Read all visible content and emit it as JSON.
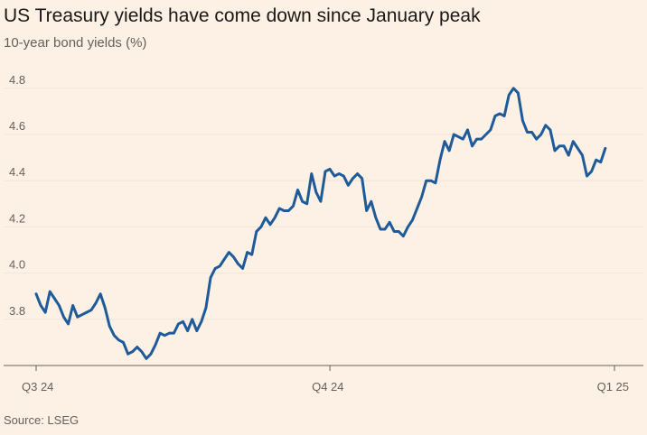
{
  "chart_data": {
    "type": "line",
    "title": "US Treasury yields have come down since January peak",
    "subtitle": "10-year bond yields (%)",
    "source": "Source: LSEG",
    "xlabel": "",
    "ylabel": "",
    "ylim": [
      3.6,
      4.85
    ],
    "yticks": [
      3.8,
      4.0,
      4.2,
      4.4,
      4.6,
      4.8
    ],
    "ytick_labels": [
      "3.8",
      "4.0",
      "4.2",
      "4.4",
      "4.6",
      "4.8"
    ],
    "x_range": [
      0,
      126
    ],
    "xticks": [
      0,
      64,
      126
    ],
    "xtick_labels": [
      "Q3 24",
      "Q4 24",
      "Q1 25"
    ],
    "grid": true,
    "legend": "none",
    "colors": {
      "line": "#1f5a99",
      "grid": "#f2e5da",
      "axis": "#66605c",
      "background": "#fdf1e6"
    },
    "series": [
      {
        "values": [
          3.91,
          3.86,
          3.83,
          3.92,
          3.89,
          3.86,
          3.81,
          3.78,
          3.86,
          3.81,
          3.82,
          3.83,
          3.84,
          3.87,
          3.91,
          3.85,
          3.77,
          3.73,
          3.71,
          3.7,
          3.65,
          3.66,
          3.68,
          3.66,
          3.63,
          3.65,
          3.69,
          3.74,
          3.73,
          3.74,
          3.74,
          3.78,
          3.79,
          3.75,
          3.8,
          3.75,
          3.79,
          3.85,
          3.98,
          4.02,
          4.03,
          4.06,
          4.09,
          4.07,
          4.04,
          4.02,
          4.09,
          4.08,
          4.18,
          4.2,
          4.24,
          4.21,
          4.24,
          4.28,
          4.27,
          4.27,
          4.29,
          4.36,
          4.31,
          4.3,
          4.43,
          4.35,
          4.31,
          4.44,
          4.45,
          4.42,
          4.43,
          4.42,
          4.38,
          4.41,
          4.43,
          4.41,
          4.27,
          4.31,
          4.24,
          4.19,
          4.19,
          4.22,
          4.18,
          4.18,
          4.16,
          4.2,
          4.23,
          4.28,
          4.33,
          4.4,
          4.4,
          4.39,
          4.49,
          4.57,
          4.53,
          4.6,
          4.59,
          4.58,
          4.62,
          4.55,
          4.58,
          4.58,
          4.6,
          4.62,
          4.68,
          4.69,
          4.68,
          4.77,
          4.8,
          4.78,
          4.66,
          4.61,
          4.61,
          4.58,
          4.6,
          4.64,
          4.62,
          4.53,
          4.55,
          4.55,
          4.51,
          4.57,
          4.54,
          4.51,
          4.42,
          4.44,
          4.49,
          4.48,
          4.54
        ]
      }
    ]
  }
}
